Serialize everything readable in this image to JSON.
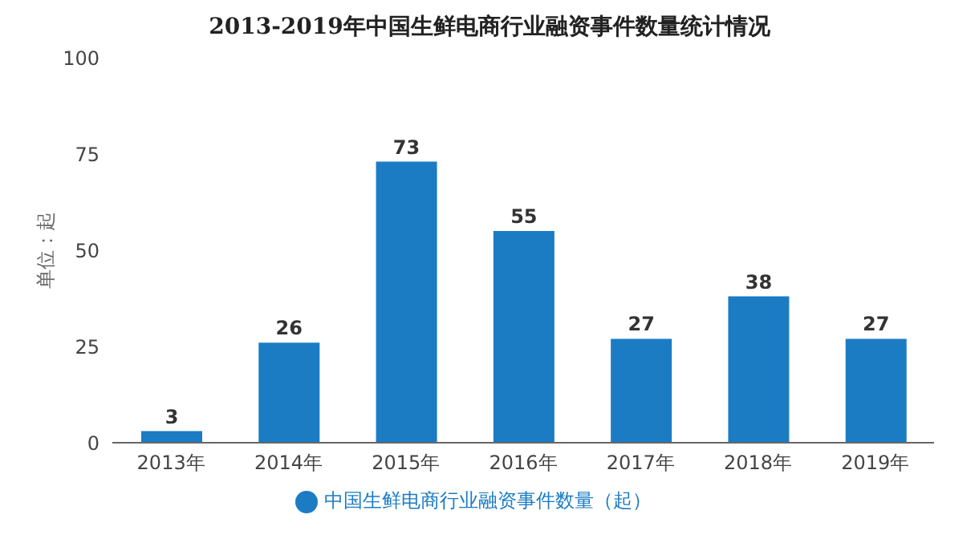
{
  "chart_data": {
    "type": "bar",
    "title": "2013-2019年中国生鲜电商行业融资事件数量统计情况",
    "ylabel": "单位：起",
    "categories": [
      "2013年",
      "2014年",
      "2015年",
      "2016年",
      "2017年",
      "2018年",
      "2019年"
    ],
    "series": [
      {
        "name": "中国生鲜电商行业融资事件数量（起）",
        "color": "#1b7cc4",
        "values": [
          3,
          26,
          73,
          55,
          27,
          38,
          27
        ]
      }
    ],
    "ylim": [
      0,
      100
    ],
    "yticks": [
      0,
      25,
      50,
      75,
      100
    ],
    "data_labels": true,
    "legend": "bottom"
  }
}
